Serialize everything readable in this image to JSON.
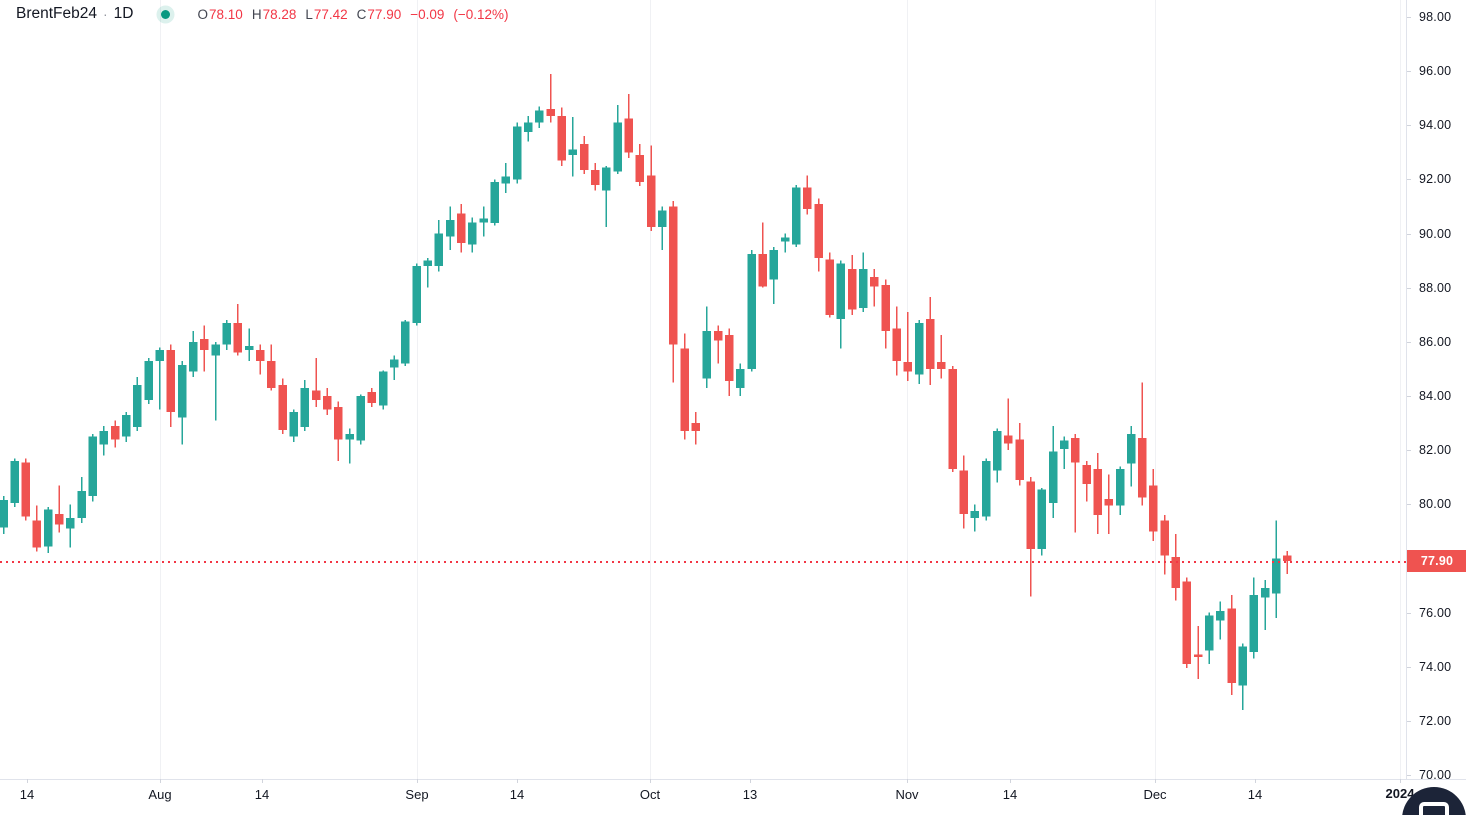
{
  "header": {
    "symbol": "BrentFeb24",
    "separator": "·",
    "interval": "1D",
    "ohlc": {
      "open_label": "O",
      "open": "78.10",
      "high_label": "H",
      "high": "78.28",
      "low_label": "L",
      "low": "77.42",
      "close_label": "C",
      "close": "77.90",
      "change": "−0.09",
      "change_percent": "(−0.12%)"
    }
  },
  "colors": {
    "up": "#26a69a",
    "down": "#ef5350",
    "header_value_red": "#f23645",
    "last_price_label_bg": "#ef5350",
    "last_price_line": "#f23645",
    "axis_text": "#131722",
    "axis_border": "#e0e3eb",
    "tick_mark": "#d1d4dc",
    "grid": "#f0f1f4",
    "status_dot": "#089981",
    "logo_bg": "#1c2438"
  },
  "chart_data": {
    "type": "candlestick",
    "symbol": "BrentFeb24",
    "interval": "1D",
    "price_range": [
      70,
      98
    ],
    "y_tick_labels": [
      "98.00",
      "96.00",
      "94.00",
      "92.00",
      "90.00",
      "88.00",
      "86.00",
      "84.00",
      "82.00",
      "80.00",
      "78.00",
      "76.00",
      "74.00",
      "72.00",
      "70.00"
    ],
    "x_ticks": [
      {
        "x": 27,
        "label": "14",
        "bold": false,
        "grid": false
      },
      {
        "x": 160,
        "label": "Aug",
        "bold": false,
        "grid": true
      },
      {
        "x": 262,
        "label": "14",
        "bold": false,
        "grid": false
      },
      {
        "x": 417,
        "label": "Sep",
        "bold": false,
        "grid": true
      },
      {
        "x": 517,
        "label": "14",
        "bold": false,
        "grid": false
      },
      {
        "x": 650,
        "label": "Oct",
        "bold": false,
        "grid": true
      },
      {
        "x": 750,
        "label": "13",
        "bold": false,
        "grid": false
      },
      {
        "x": 907,
        "label": "Nov",
        "bold": false,
        "grid": true
      },
      {
        "x": 1010,
        "label": "14",
        "bold": false,
        "grid": false
      },
      {
        "x": 1155,
        "label": "Dec",
        "bold": false,
        "grid": true
      },
      {
        "x": 1255,
        "label": "14",
        "bold": false,
        "grid": false
      },
      {
        "x": 1400,
        "label": "2024",
        "bold": true,
        "grid": true
      }
    ],
    "last_price": 77.9,
    "last_price_label": "77.90",
    "up_color": "#26a69a",
    "down_color": "#ef5350",
    "ohlc_order": [
      "open",
      "high",
      "low",
      "close"
    ],
    "candles": [
      [
        79.15,
        80.3,
        78.9,
        80.15
      ],
      [
        80.05,
        81.7,
        79.9,
        81.6
      ],
      [
        81.55,
        81.7,
        79.4,
        79.55
      ],
      [
        79.4,
        79.95,
        78.25,
        78.4
      ],
      [
        78.45,
        79.9,
        78.2,
        79.8
      ],
      [
        79.65,
        80.7,
        78.95,
        79.25
      ],
      [
        79.1,
        80.0,
        78.4,
        79.5
      ],
      [
        79.5,
        81.0,
        79.3,
        80.5
      ],
      [
        80.3,
        82.6,
        80.1,
        82.5
      ],
      [
        82.2,
        82.9,
        81.8,
        82.7
      ],
      [
        82.9,
        83.1,
        82.1,
        82.4
      ],
      [
        82.5,
        83.4,
        82.3,
        83.3
      ],
      [
        82.85,
        84.7,
        82.7,
        84.4
      ],
      [
        83.85,
        85.4,
        83.7,
        85.3
      ],
      [
        85.3,
        85.8,
        83.5,
        85.7
      ],
      [
        85.7,
        85.9,
        82.85,
        83.4
      ],
      [
        83.2,
        85.3,
        82.2,
        85.15
      ],
      [
        84.9,
        86.4,
        84.7,
        86.0
      ],
      [
        86.1,
        86.6,
        84.9,
        85.7
      ],
      [
        85.5,
        86.0,
        83.1,
        85.9
      ],
      [
        85.9,
        86.8,
        85.7,
        86.7
      ],
      [
        86.7,
        87.4,
        85.5,
        85.6
      ],
      [
        85.7,
        86.5,
        85.3,
        85.85
      ],
      [
        85.7,
        85.9,
        84.8,
        85.3
      ],
      [
        85.3,
        85.9,
        84.2,
        84.3
      ],
      [
        84.4,
        84.65,
        82.6,
        82.75
      ],
      [
        82.5,
        83.5,
        82.3,
        83.4
      ],
      [
        82.85,
        84.6,
        82.7,
        84.3
      ],
      [
        84.2,
        85.4,
        83.6,
        83.85
      ],
      [
        84.0,
        84.3,
        83.3,
        83.5
      ],
      [
        83.6,
        83.8,
        81.6,
        82.4
      ],
      [
        82.4,
        82.8,
        81.5,
        82.6
      ],
      [
        82.35,
        84.05,
        82.2,
        84.0
      ],
      [
        84.15,
        84.3,
        83.6,
        83.75
      ],
      [
        83.65,
        84.95,
        83.5,
        84.9
      ],
      [
        85.05,
        85.5,
        84.6,
        85.35
      ],
      [
        85.2,
        86.8,
        85.1,
        86.75
      ],
      [
        86.7,
        88.9,
        86.6,
        88.8
      ],
      [
        88.8,
        89.1,
        88.0,
        89.0
      ],
      [
        88.8,
        90.5,
        88.6,
        90.0
      ],
      [
        89.9,
        91.0,
        89.4,
        90.5
      ],
      [
        90.75,
        91.1,
        89.3,
        89.65
      ],
      [
        89.6,
        90.6,
        89.3,
        90.4
      ],
      [
        90.4,
        91.0,
        89.9,
        90.55
      ],
      [
        90.4,
        92.0,
        90.3,
        91.9
      ],
      [
        91.85,
        92.6,
        91.5,
        92.1
      ],
      [
        92.0,
        94.1,
        91.85,
        93.95
      ],
      [
        93.75,
        94.35,
        93.4,
        94.1
      ],
      [
        94.1,
        94.7,
        93.9,
        94.55
      ],
      [
        94.6,
        95.9,
        94.1,
        94.35
      ],
      [
        94.35,
        94.65,
        92.5,
        92.7
      ],
      [
        92.9,
        94.3,
        92.1,
        93.1
      ],
      [
        93.3,
        93.6,
        92.2,
        92.35
      ],
      [
        92.35,
        92.6,
        91.6,
        91.8
      ],
      [
        91.6,
        92.5,
        90.25,
        92.45
      ],
      [
        92.3,
        94.75,
        92.2,
        94.1
      ],
      [
        94.25,
        95.15,
        92.8,
        93.0
      ],
      [
        92.9,
        93.3,
        91.75,
        91.9
      ],
      [
        92.15,
        93.25,
        90.1,
        90.25
      ],
      [
        90.25,
        91.0,
        89.4,
        90.85
      ],
      [
        91.0,
        91.2,
        84.5,
        85.9
      ],
      [
        85.75,
        86.3,
        82.4,
        82.7
      ],
      [
        83.0,
        83.4,
        82.2,
        82.7
      ],
      [
        84.65,
        87.3,
        84.3,
        86.4
      ],
      [
        86.4,
        86.6,
        85.2,
        86.05
      ],
      [
        86.25,
        86.5,
        84.0,
        84.55
      ],
      [
        84.3,
        85.2,
        84.0,
        85.0
      ],
      [
        85.0,
        89.4,
        84.9,
        89.25
      ],
      [
        89.25,
        90.4,
        88.0,
        88.05
      ],
      [
        88.3,
        89.5,
        87.4,
        89.4
      ],
      [
        89.7,
        90.0,
        89.3,
        89.85
      ],
      [
        89.6,
        91.8,
        89.5,
        91.7
      ],
      [
        91.7,
        92.15,
        90.7,
        90.9
      ],
      [
        91.1,
        91.3,
        88.6,
        89.1
      ],
      [
        89.05,
        89.3,
        86.9,
        87.0
      ],
      [
        86.85,
        89.0,
        85.75,
        88.9
      ],
      [
        88.7,
        89.2,
        87.0,
        87.2
      ],
      [
        87.25,
        89.3,
        87.1,
        88.7
      ],
      [
        88.4,
        88.7,
        87.3,
        88.05
      ],
      [
        88.1,
        88.3,
        85.75,
        86.4
      ],
      [
        86.5,
        87.3,
        84.75,
        85.3
      ],
      [
        85.25,
        87.1,
        84.55,
        84.9
      ],
      [
        84.8,
        86.8,
        84.45,
        86.7
      ],
      [
        86.85,
        87.65,
        84.4,
        85.0
      ],
      [
        85.25,
        86.25,
        84.65,
        85.0
      ],
      [
        85.0,
        85.1,
        81.2,
        81.3
      ],
      [
        81.25,
        81.8,
        79.1,
        79.65
      ],
      [
        79.5,
        80.0,
        79.0,
        79.75
      ],
      [
        79.55,
        81.7,
        79.4,
        81.6
      ],
      [
        81.25,
        82.8,
        80.8,
        82.7
      ],
      [
        82.55,
        83.9,
        82.0,
        82.25
      ],
      [
        82.4,
        83.0,
        80.7,
        80.9
      ],
      [
        80.85,
        81.0,
        76.6,
        78.35
      ],
      [
        78.35,
        80.6,
        78.1,
        80.55
      ],
      [
        80.05,
        82.9,
        79.5,
        81.95
      ],
      [
        82.05,
        82.5,
        81.3,
        82.35
      ],
      [
        82.45,
        82.6,
        78.95,
        81.55
      ],
      [
        81.45,
        81.6,
        80.1,
        80.75
      ],
      [
        81.3,
        81.9,
        78.9,
        79.6
      ],
      [
        80.2,
        81.1,
        78.9,
        79.95
      ],
      [
        79.95,
        81.4,
        79.6,
        81.3
      ],
      [
        81.5,
        82.9,
        80.65,
        82.6
      ],
      [
        82.45,
        84.5,
        79.95,
        80.25
      ],
      [
        80.7,
        81.3,
        78.65,
        79.0
      ],
      [
        79.4,
        79.6,
        77.4,
        78.1
      ],
      [
        78.05,
        78.9,
        76.45,
        76.9
      ],
      [
        77.15,
        77.3,
        73.95,
        74.1
      ],
      [
        74.45,
        75.5,
        73.55,
        74.35
      ],
      [
        74.6,
        76.0,
        74.1,
        75.9
      ],
      [
        75.7,
        76.4,
        75.0,
        76.05
      ],
      [
        76.15,
        76.65,
        72.95,
        73.4
      ],
      [
        73.3,
        74.85,
        72.4,
        74.75
      ],
      [
        74.55,
        77.3,
        74.3,
        76.65
      ],
      [
        76.55,
        77.2,
        75.35,
        76.9
      ],
      [
        76.7,
        79.4,
        75.8,
        78.0
      ],
      [
        78.1,
        78.28,
        77.42,
        77.9
      ]
    ]
  },
  "logo": {
    "icon": "tradingview-logo"
  }
}
